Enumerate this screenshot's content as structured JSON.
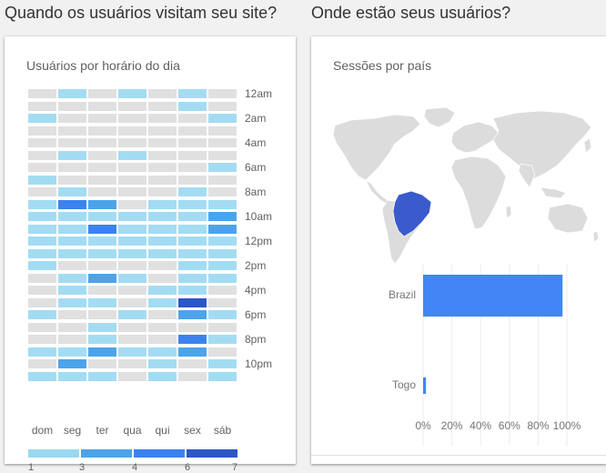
{
  "sections": {
    "left_title": "Quando os usuários visitam seu site?",
    "right_title": "Onde estão seus usuários?"
  },
  "heatmap_card": {
    "title": "Usuários por horário do dia",
    "days": [
      "dom",
      "seg",
      "ter",
      "qua",
      "qui",
      "sex",
      "sáb"
    ],
    "hour_labels": [
      "12am",
      "2am",
      "4am",
      "6am",
      "8am",
      "10am",
      "12pm",
      "2pm",
      "4pm",
      "6pm",
      "8pm",
      "10pm"
    ],
    "scale": {
      "labels": [
        "1",
        "3",
        "4",
        "6",
        "7"
      ],
      "colors": [
        "#9ad8f0",
        "#4da3e9",
        "#3b82ef",
        "#2b57c4"
      ]
    },
    "palette": {
      "0": "#e0e0e0",
      "1": "#a3dcf2",
      "2": "#82c7ee",
      "3": "#4da3e9",
      "4": "#3b82ef",
      "5": "#2b57c4"
    },
    "grid": [
      [
        0,
        1,
        0,
        1,
        0,
        1,
        0
      ],
      [
        0,
        0,
        0,
        0,
        0,
        1,
        0
      ],
      [
        1,
        0,
        0,
        0,
        0,
        0,
        1
      ],
      [
        0,
        0,
        0,
        0,
        0,
        0,
        0
      ],
      [
        0,
        0,
        0,
        0,
        0,
        0,
        0
      ],
      [
        0,
        1,
        0,
        1,
        0,
        0,
        0
      ],
      [
        0,
        0,
        0,
        0,
        0,
        0,
        1
      ],
      [
        1,
        0,
        0,
        0,
        0,
        0,
        0
      ],
      [
        0,
        1,
        0,
        0,
        0,
        1,
        0
      ],
      [
        1,
        4,
        3,
        0,
        1,
        1,
        1
      ],
      [
        1,
        1,
        1,
        1,
        1,
        1,
        3
      ],
      [
        1,
        1,
        4,
        1,
        1,
        1,
        3
      ],
      [
        1,
        1,
        1,
        1,
        1,
        1,
        1
      ],
      [
        1,
        1,
        1,
        1,
        1,
        1,
        1
      ],
      [
        1,
        0,
        0,
        0,
        0,
        1,
        1
      ],
      [
        0,
        1,
        3,
        1,
        0,
        1,
        1
      ],
      [
        0,
        1,
        0,
        0,
        1,
        1,
        0
      ],
      [
        0,
        1,
        1,
        0,
        1,
        5,
        0
      ],
      [
        1,
        0,
        0,
        1,
        0,
        3,
        1
      ],
      [
        0,
        0,
        1,
        0,
        0,
        0,
        0
      ],
      [
        0,
        0,
        1,
        0,
        0,
        4,
        1
      ],
      [
        1,
        1,
        3,
        1,
        1,
        3,
        0
      ],
      [
        0,
        3,
        0,
        0,
        1,
        0,
        1
      ],
      [
        1,
        1,
        1,
        0,
        1,
        0,
        1
      ]
    ]
  },
  "country_card": {
    "title": "Sessões por país"
  },
  "chart_data": {
    "type": "bar",
    "orientation": "horizontal",
    "title": "Sessões por país",
    "categories": [
      "Brazil",
      "Togo"
    ],
    "values": [
      97,
      2
    ],
    "unit": "%",
    "xlim": [
      0,
      100
    ],
    "xticks": [
      "0%",
      "20%",
      "40%",
      "60%",
      "80%",
      "100%"
    ],
    "bar_color": "#4285f4"
  }
}
